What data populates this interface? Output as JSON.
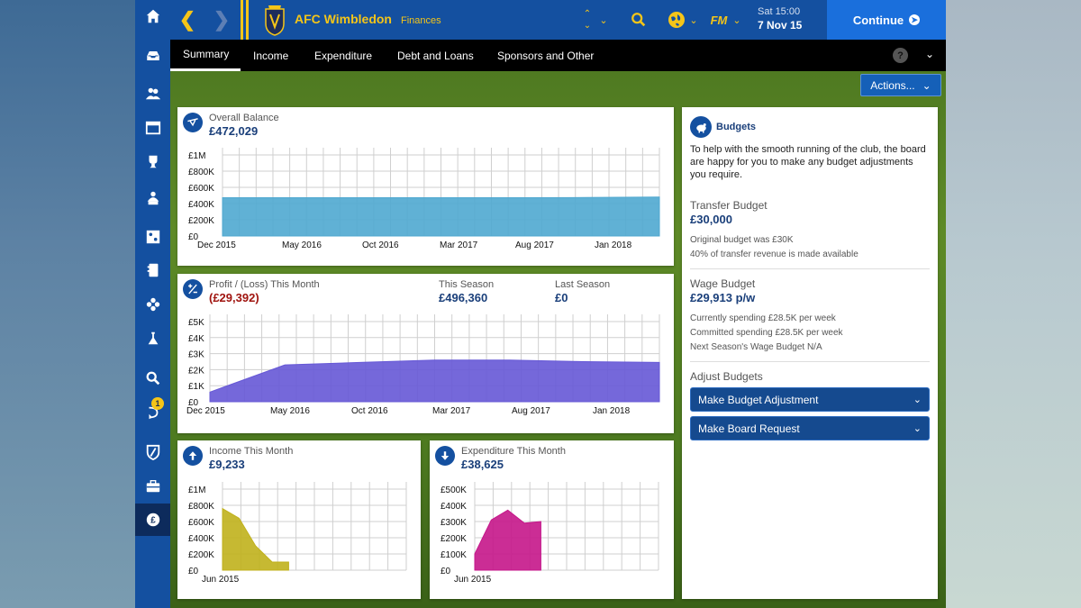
{
  "header": {
    "club_name": "AFC Wimbledon",
    "section": "Finances",
    "fm_label": "FM",
    "day_time": "Sat 15:00",
    "date": "7 Nov 15",
    "continue_label": "Continue"
  },
  "tabs": [
    "Summary",
    "Income",
    "Expenditure",
    "Debt and Loans",
    "Sponsors and Other"
  ],
  "actions_label": "Actions...",
  "sidebar": {
    "icons": [
      "home-icon",
      "inbox-icon",
      "squad-icon",
      "schedule-icon",
      "trophy-icon",
      "staff-icon",
      "tactics-icon",
      "notebook-icon",
      "club-icon",
      "training-icon",
      "search-icon",
      "transfers-icon",
      "shield-icon",
      "briefcase-icon",
      "finances-icon"
    ],
    "badge_count": "1"
  },
  "overall_balance": {
    "label": "Overall Balance",
    "value": "£472,029"
  },
  "profit": {
    "label": "Profit / (Loss) This Month",
    "value": "(£29,392)",
    "season_label": "This Season",
    "season_value": "£496,360",
    "last_label": "Last Season",
    "last_value": "£0"
  },
  "income_month": {
    "label": "Income This Month",
    "value": "£9,233"
  },
  "expenditure_month": {
    "label": "Expenditure This Month",
    "value": "£38,625"
  },
  "budgets": {
    "title": "Budgets",
    "intro": "To help with the smooth running of the club, the board are happy for you to make any budget adjustments you require.",
    "transfer_label": "Transfer Budget",
    "transfer_value": "£30,000",
    "transfer_note1": "Original budget was £30K",
    "transfer_note2": "40% of transfer revenue is made available",
    "wage_label": "Wage Budget",
    "wage_value": "£29,913 p/w",
    "wage_note1": "Currently spending £28.5K per week",
    "wage_note2": "Committed spending £28.5K per week",
    "wage_note3": "Next Season's Wage Budget N/A",
    "adjust_label": "Adjust Budgets",
    "btn1": "Make Budget Adjustment",
    "btn2": "Make Board Request"
  },
  "chart_data": [
    {
      "type": "area",
      "name": "overall-balance",
      "color": "#4fa8d0",
      "x_labels": [
        "Dec 2015",
        "May 2016",
        "Oct 2016",
        "Mar 2017",
        "Aug 2017",
        "Jan 2018"
      ],
      "y_ticks": [
        "£0",
        "£200K",
        "£400K",
        "£600K",
        "£800K",
        "£1M"
      ],
      "ylim": [
        0,
        1000000
      ],
      "values": [
        472029,
        472029,
        472029,
        472029,
        472029,
        475000,
        480000
      ]
    },
    {
      "type": "area",
      "name": "profit-loss",
      "color": "#6658d6",
      "x_labels": [
        "Dec 2015",
        "May 2016",
        "Oct 2016",
        "Mar 2017",
        "Aug 2017",
        "Jan 2018"
      ],
      "y_ticks": [
        "£0",
        "£1K",
        "£2K",
        "£3K",
        "£4K",
        "£5K"
      ],
      "ylim": [
        0,
        5000
      ],
      "values": [
        600,
        2300,
        2450,
        2600,
        2600,
        2500,
        2450
      ]
    },
    {
      "type": "area",
      "name": "income-month",
      "color": "#c0b11c",
      "x_labels": [
        "Jun 2015"
      ],
      "y_ticks": [
        "£0",
        "£200K",
        "£400K",
        "£600K",
        "£800K",
        "£1M"
      ],
      "ylim": [
        0,
        1000000
      ],
      "values": [
        760000,
        640000,
        300000,
        100000,
        100000
      ]
    },
    {
      "type": "area",
      "name": "expenditure-month",
      "color": "#c5168a",
      "x_labels": [
        "Jun 2015"
      ],
      "y_ticks": [
        "£0",
        "£100K",
        "£200K",
        "£300K",
        "£400K",
        "£500K"
      ],
      "ylim": [
        0,
        500000
      ],
      "values": [
        100000,
        310000,
        370000,
        290000,
        300000
      ]
    }
  ]
}
